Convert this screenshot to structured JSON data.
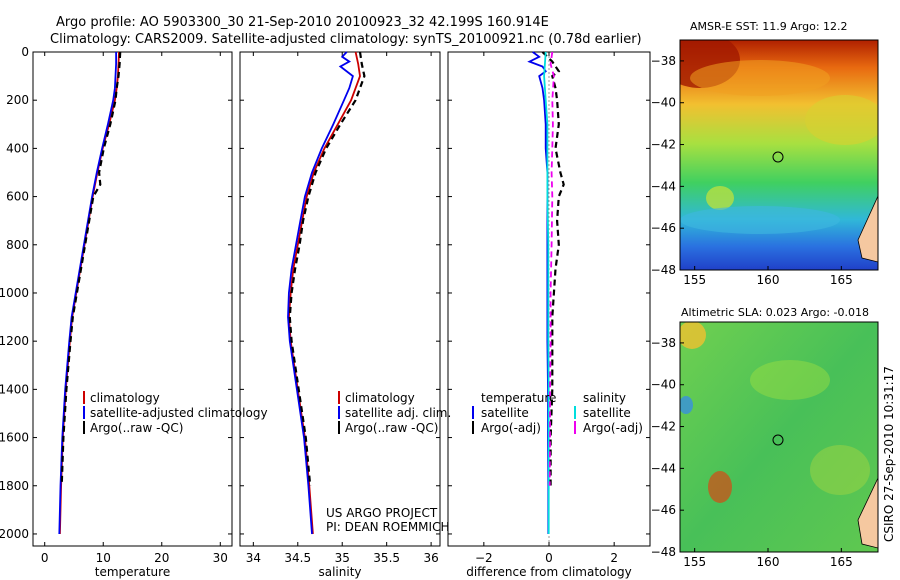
{
  "header": {
    "line1": "Argo profile: AO 5903300_30 21-Sep-2010 20100923_32 42.199S 160.914E",
    "line2": "Climatology: CARS2009. Satellite-adjusted climatology: synTS_20100921.nc (0.78d earlier)"
  },
  "colors": {
    "climatology": "#cc0000",
    "satellite": "#0000ee",
    "argo": "#000000",
    "sal_satellite": "#00dddd",
    "sal_argo": "#ee00ee"
  },
  "chart_data": [
    {
      "type": "line",
      "id": "temperature",
      "xlabel": "temperature",
      "ylabel": "",
      "xlim": [
        -2,
        32
      ],
      "ylim": [
        2050,
        0
      ],
      "xticks": [
        0,
        10,
        20,
        30
      ],
      "yticks": [
        0,
        200,
        400,
        600,
        800,
        1000,
        1200,
        1400,
        1600,
        1800,
        2000
      ],
      "legend": [
        "climatology",
        "satellite-adjusted climatology",
        "Argo(..raw -QC)"
      ],
      "series": [
        {
          "name": "climatology",
          "depth": [
            0,
            50,
            100,
            150,
            200,
            300,
            400,
            500,
            600,
            700,
            800,
            900,
            1000,
            1100,
            1200,
            1400,
            1600,
            1800,
            2000
          ],
          "values": [
            12.7,
            12.6,
            12.5,
            12.3,
            12.0,
            11.0,
            9.9,
            9.0,
            8.2,
            7.5,
            6.8,
            6.1,
            5.4,
            4.7,
            4.3,
            3.6,
            3.1,
            2.8,
            2.6
          ]
        },
        {
          "name": "satellite-adjusted climatology",
          "depth": [
            0,
            50,
            100,
            150,
            200,
            300,
            400,
            500,
            600,
            700,
            800,
            900,
            1000,
            1100,
            1200,
            1400,
            1600,
            1800,
            2000
          ],
          "values": [
            12.2,
            12.2,
            12.1,
            12.0,
            11.7,
            10.8,
            9.8,
            8.9,
            8.1,
            7.4,
            6.7,
            6.0,
            5.3,
            4.6,
            4.2,
            3.5,
            3.0,
            2.7,
            2.5
          ]
        },
        {
          "name": "Argo(..raw -QC)",
          "depth": [
            0,
            50,
            100,
            150,
            200,
            300,
            400,
            500,
            550,
            600,
            700,
            800,
            900,
            1000,
            1100,
            1200,
            1400,
            1600,
            1800
          ],
          "values": [
            12.9,
            12.8,
            12.6,
            12.3,
            12.1,
            11.2,
            10.1,
            9.3,
            9.5,
            8.3,
            7.6,
            6.9,
            6.2,
            5.5,
            4.8,
            4.4,
            3.7,
            3.2,
            2.9
          ]
        }
      ]
    },
    {
      "type": "line",
      "id": "salinity",
      "xlabel": "salinity",
      "xlim": [
        33.85,
        36.1
      ],
      "ylim": [
        2050,
        0
      ],
      "xticks": [
        34,
        34.5,
        35,
        35.5,
        36
      ],
      "legend": [
        "climatology",
        "satellite adj. clim.",
        "Argo(..raw -QC)"
      ],
      "series": [
        {
          "name": "climatology",
          "depth": [
            0,
            50,
            100,
            150,
            200,
            300,
            400,
            500,
            600,
            700,
            800,
            900,
            1000,
            1100,
            1200,
            1400,
            1600,
            1800,
            2000
          ],
          "values": [
            35.15,
            35.18,
            35.2,
            35.15,
            35.1,
            34.95,
            34.8,
            34.68,
            34.6,
            34.55,
            34.5,
            34.45,
            34.42,
            34.4,
            34.42,
            34.5,
            34.58,
            34.63,
            34.67
          ]
        },
        {
          "name": "satellite adj. clim.",
          "depth": [
            0,
            20,
            40,
            60,
            100,
            150,
            200,
            300,
            400,
            500,
            600,
            700,
            800,
            900,
            1000,
            1100,
            1200,
            1400,
            1600,
            1800,
            2000
          ],
          "values": [
            35.05,
            35.0,
            35.08,
            34.98,
            35.12,
            35.08,
            35.02,
            34.9,
            34.77,
            34.66,
            34.58,
            34.53,
            34.48,
            34.43,
            34.4,
            34.39,
            34.41,
            34.49,
            34.57,
            34.62,
            34.66
          ]
        },
        {
          "name": "Argo(..raw -QC)",
          "depth": [
            0,
            50,
            100,
            150,
            200,
            300,
            400,
            500,
            600,
            700,
            800,
            900,
            1000,
            1100,
            1200,
            1400,
            1600,
            1800
          ],
          "values": [
            35.2,
            35.22,
            35.25,
            35.2,
            35.15,
            34.98,
            34.82,
            34.7,
            34.62,
            34.56,
            34.52,
            34.47,
            34.43,
            34.41,
            34.43,
            34.51,
            34.59,
            34.64
          ]
        }
      ]
    },
    {
      "type": "line",
      "id": "difference",
      "xlabel": "difference from climatology",
      "xlim": [
        -3.1,
        3.1
      ],
      "ylim": [
        2050,
        0
      ],
      "xticks": [
        -2,
        0,
        2
      ],
      "legend_title_left": "temperature",
      "legend_title_right": "salinity",
      "legend": [
        "satellite",
        "Argo(-adj)",
        "satellite",
        "Argo(-adj)"
      ],
      "series": [
        {
          "name": "temperature satellite",
          "depth": [
            0,
            20,
            40,
            60,
            80,
            100,
            150,
            200,
            300,
            400,
            500,
            600,
            800,
            1000,
            1200,
            1400,
            1600,
            1800,
            2000
          ],
          "values": [
            -0.5,
            -0.3,
            -0.6,
            -0.2,
            -0.1,
            -0.3,
            -0.2,
            -0.15,
            -0.1,
            -0.1,
            -0.05,
            -0.05,
            -0.05,
            -0.05,
            -0.05,
            -0.03,
            -0.03,
            -0.02,
            -0.02
          ]
        },
        {
          "name": "temperature Argo(-adj)",
          "depth": [
            0,
            40,
            80,
            100,
            150,
            200,
            300,
            400,
            500,
            550,
            600,
            700,
            800,
            900,
            1000,
            1100,
            1200,
            1400,
            1600,
            1800
          ],
          "values": [
            -0.2,
            0.1,
            0.3,
            0.1,
            0.2,
            0.25,
            0.3,
            0.2,
            0.35,
            0.45,
            0.3,
            0.25,
            0.3,
            0.2,
            0.15,
            0.1,
            0.1,
            0.1,
            0.05,
            0.05
          ]
        },
        {
          "name": "salinity satellite",
          "depth": [
            0,
            100,
            200,
            300,
            400,
            600,
            800,
            1000,
            1200,
            1400,
            1600,
            1800,
            2000
          ],
          "values": [
            -0.1,
            -0.15,
            -0.1,
            -0.05,
            -0.05,
            -0.05,
            -0.02,
            -0.02,
            -0.02,
            -0.01,
            -0.01,
            -0.01,
            -0.01
          ]
        },
        {
          "name": "salinity Argo(-adj)",
          "depth": [
            0,
            50,
            100,
            200,
            300,
            400,
            500,
            600,
            800,
            1000,
            1200,
            1400,
            1600,
            1800
          ],
          "values": [
            0.1,
            0.05,
            0.15,
            0.1,
            0.12,
            0.1,
            0.08,
            0.1,
            0.08,
            0.05,
            0.05,
            0.03,
            0.03,
            0.02
          ]
        }
      ]
    },
    {
      "type": "heatmap",
      "id": "sst_map",
      "title": "AMSR-E SST: 11.9 Argo: 12.2",
      "xlim": [
        154,
        167.5
      ],
      "ylim": [
        -48,
        -37
      ],
      "xticks": [
        155,
        160,
        165
      ],
      "yticks": [
        -38,
        -40,
        -42,
        -44,
        -46,
        -48
      ],
      "marker": {
        "lon": 160.914,
        "lat": -42.199
      }
    },
    {
      "type": "heatmap",
      "id": "sla_map",
      "title": "Altimetric SLA: 0.023 Argo: -0.018",
      "xlim": [
        154,
        167.5
      ],
      "ylim": [
        -48,
        -37
      ],
      "xticks": [
        155,
        160,
        165
      ],
      "yticks": [
        -38,
        -40,
        -42,
        -44,
        -46,
        -48
      ],
      "marker": {
        "lon": 160.914,
        "lat": -42.199
      }
    }
  ],
  "credits": {
    "project_line1": "US ARGO PROJECT",
    "project_line2": "PI: DEAN ROEMMICH",
    "stamp": "CSIRO 27-Sep-2010 10:31:17"
  }
}
